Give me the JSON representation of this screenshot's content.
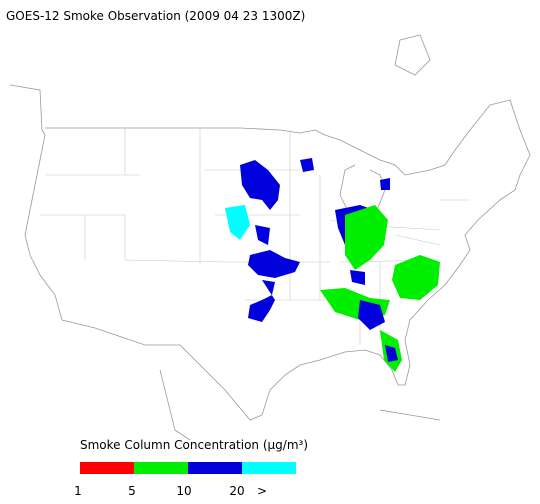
{
  "title": "GOES-12 Smoke Observation (2009 04 23  1300Z)",
  "legend": {
    "title": "Smoke Column Concentration (μg/m³)",
    "colors": [
      "#ff0000",
      "#00ee00",
      "#0000dd",
      "#00ffff"
    ],
    "ticks": [
      "1",
      "5",
      "10",
      "20",
      ">"
    ]
  }
}
